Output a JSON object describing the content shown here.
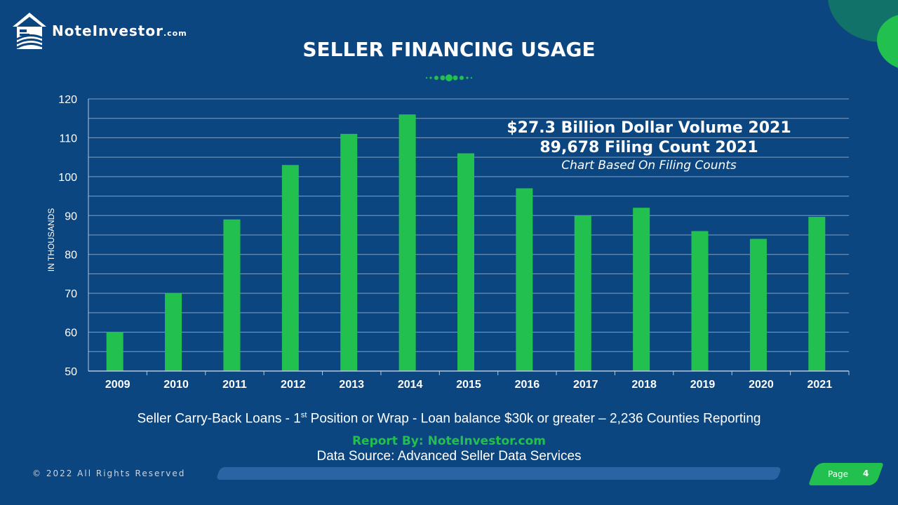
{
  "brand": {
    "logo_main": "NoteInvestor",
    "logo_suffix": ".com"
  },
  "title": "SELLER FINANCING USAGE",
  "annotation": {
    "line1": "$27.3 Billion Dollar Volume 2021",
    "line2": "89,678 Filing Count 2021",
    "line3": "Chart Based On Filing Counts"
  },
  "caption": {
    "before_sup": "Seller Carry-Back Loans - 1",
    "sup": "st",
    "after_sup": " Position or Wrap - Loan balance $30k or greater – 2,236 Counties Reporting"
  },
  "report_by": "Report By: NoteInvestor.com",
  "data_source": "Data Source: Advanced Seller Data Services",
  "copyright": "©  2022 All Rights Reserved",
  "page": {
    "label": "Page",
    "number": "4"
  },
  "colors": {
    "background": "#0c4680",
    "bar": "#22c04e",
    "accent_green": "#22c04e",
    "text": "#ffffff"
  },
  "chart_data": {
    "type": "bar",
    "title": "SELLER FINANCING USAGE",
    "xlabel": "",
    "ylabel": "IN THOUSANDS",
    "categories": [
      "2009",
      "2010",
      "2011",
      "2012",
      "2013",
      "2014",
      "2015",
      "2016",
      "2017",
      "2018",
      "2019",
      "2020",
      "2021"
    ],
    "values": [
      60,
      70,
      89,
      103,
      111,
      116,
      106,
      97,
      90,
      92,
      86,
      84,
      89.678
    ],
    "ylim": [
      50,
      120
    ],
    "yticks": [
      50,
      60,
      70,
      80,
      90,
      100,
      110,
      120
    ],
    "grid": true,
    "legend": "none"
  }
}
